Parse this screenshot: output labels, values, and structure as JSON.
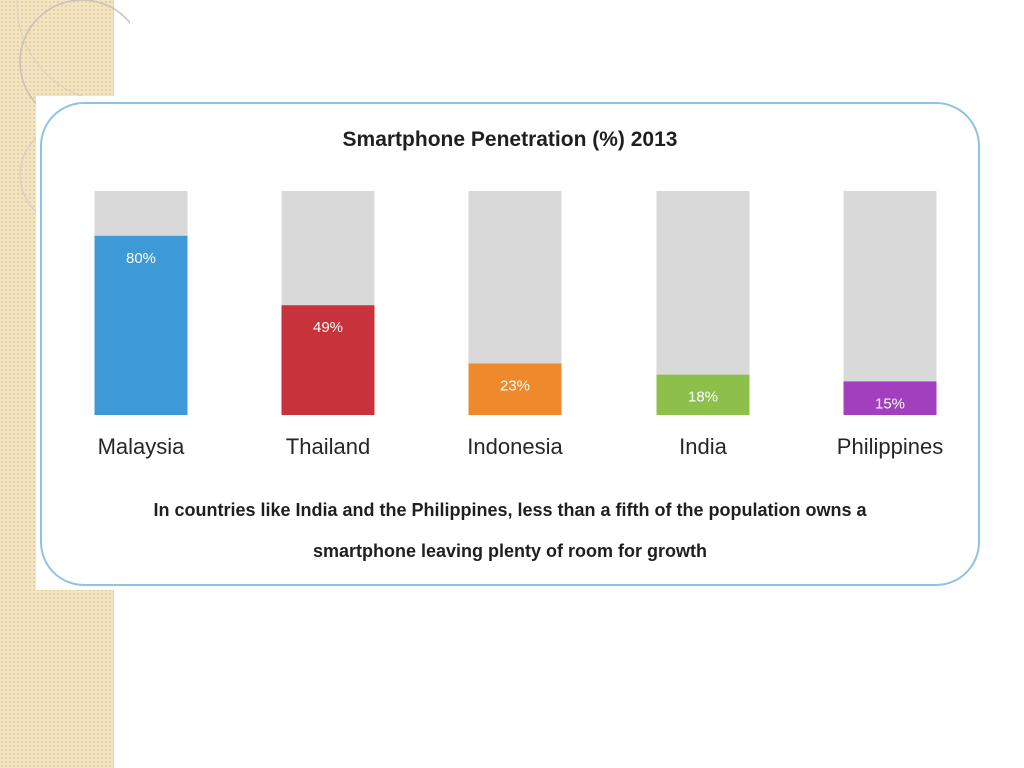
{
  "chart_data": {
    "type": "bar",
    "title": "Smartphone Penetration (%) 2013",
    "categories": [
      "Malaysia",
      "Thailand",
      "Indonesia",
      "India",
      "Philippines"
    ],
    "values": [
      80,
      49,
      23,
      18,
      15
    ],
    "value_labels": [
      "80%",
      "49%",
      "23%",
      "18%",
      "15%"
    ],
    "colors": [
      "#3d9ad6",
      "#c8323b",
      "#ef8a2c",
      "#8cc04a",
      "#a23fbf"
    ],
    "background_bar_color": "#d9d9d9",
    "ylim": [
      0,
      100
    ],
    "xlabel": "",
    "ylabel": "",
    "grid": false,
    "legend": "none"
  },
  "caption": {
    "line1": "In countries like India and the Philippines, less than a fifth of the population owns a",
    "line2": "smartphone leaving plenty of room for growth"
  }
}
